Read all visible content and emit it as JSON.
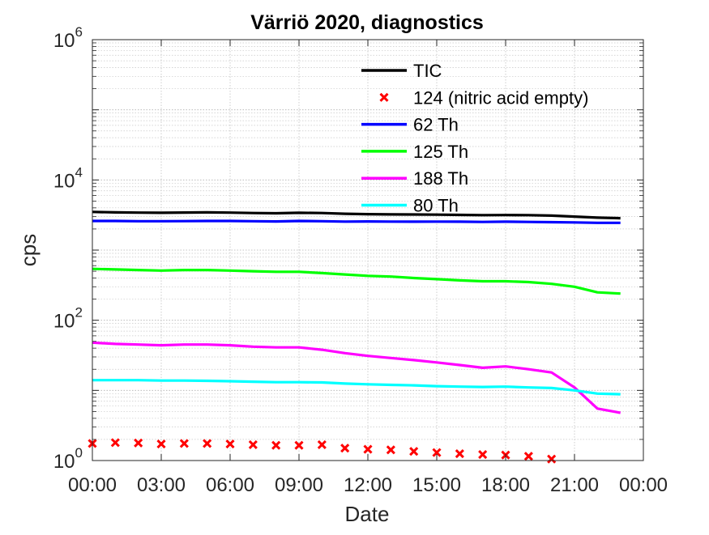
{
  "chart_data": {
    "type": "line",
    "title": "Värriö 2020, diagnostics",
    "xlabel": "Date",
    "ylabel": "cps",
    "yscale": "log",
    "ylim": [
      1,
      1000000
    ],
    "xlim": [
      "00:00",
      "24:00"
    ],
    "grid": true,
    "legend_position": "top-right (inside axes)",
    "x_ticks": [
      "00:00",
      "03:00",
      "06:00",
      "09:00",
      "12:00",
      "15:00",
      "18:00",
      "21:00",
      "00:00"
    ],
    "y_ticks": [
      {
        "base": "10",
        "exp": "0"
      },
      {
        "base": "10",
        "exp": "2"
      },
      {
        "base": "10",
        "exp": "4"
      },
      {
        "base": "10",
        "exp": "6"
      }
    ],
    "x_hours": [
      0,
      1,
      2,
      3,
      4,
      5,
      6,
      7,
      8,
      9,
      10,
      11,
      12,
      13,
      14,
      15,
      16,
      17,
      18,
      19,
      20,
      21,
      22,
      23
    ],
    "series": [
      {
        "name": "TIC",
        "color": "#000000",
        "style": "line",
        "values": [
          3500,
          3450,
          3420,
          3400,
          3430,
          3450,
          3420,
          3380,
          3350,
          3400,
          3380,
          3300,
          3250,
          3230,
          3220,
          3200,
          3180,
          3150,
          3160,
          3150,
          3100,
          3000,
          2900,
          2850
        ]
      },
      {
        "name": "124 (nitric acid empty)",
        "color": "#ff0000",
        "style": "marker-x",
        "values": [
          1.75,
          1.8,
          1.78,
          1.72,
          1.75,
          1.75,
          1.72,
          1.68,
          1.65,
          1.65,
          1.68,
          1.5,
          1.45,
          1.42,
          1.35,
          1.3,
          1.25,
          1.22,
          1.2,
          1.15,
          1.05,
          null,
          null,
          null
        ]
      },
      {
        "name": "62 Th",
        "color": "#0000ff",
        "style": "line",
        "values": [
          2600,
          2600,
          2580,
          2580,
          2590,
          2600,
          2600,
          2580,
          2560,
          2600,
          2580,
          2550,
          2560,
          2550,
          2540,
          2550,
          2540,
          2520,
          2540,
          2520,
          2500,
          2480,
          2450,
          2450
        ]
      },
      {
        "name": "125 Th",
        "color": "#00ff00",
        "style": "line",
        "values": [
          540,
          530,
          520,
          510,
          520,
          520,
          510,
          500,
          490,
          490,
          470,
          450,
          430,
          420,
          400,
          385,
          370,
          360,
          360,
          350,
          330,
          300,
          250,
          240
        ]
      },
      {
        "name": "188 Th",
        "color": "#ff00ff",
        "style": "line",
        "values": [
          48,
          46,
          45,
          44,
          45,
          45,
          44,
          42,
          41,
          41,
          38,
          34,
          31,
          29,
          27,
          25,
          23,
          21,
          22,
          20,
          18,
          11,
          5.5,
          4.8
        ]
      },
      {
        "name": "80 Th",
        "color": "#00ffff",
        "style": "line",
        "values": [
          14,
          14,
          14,
          13.8,
          13.8,
          13.7,
          13.5,
          13.3,
          13.1,
          13.1,
          13,
          12.5,
          12.2,
          12,
          11.8,
          11.5,
          11.3,
          11.2,
          11.3,
          11,
          10.8,
          10,
          9,
          8.8
        ]
      }
    ]
  }
}
